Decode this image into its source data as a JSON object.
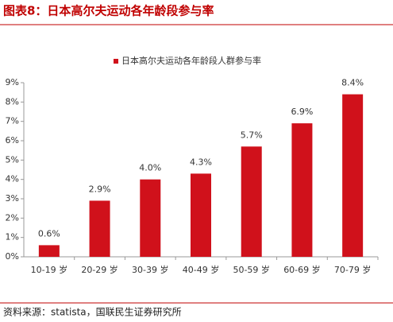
{
  "chart_data": {
    "type": "bar",
    "title": "图表8：日本高尔夫运动各年龄段参与率",
    "source": "资料来源：statista，国联民生证券研究所",
    "categories": [
      "10-19 岁",
      "20-29 岁",
      "30-39 岁",
      "40-49 岁",
      "50-59 岁",
      "60-69 岁",
      "70-79 岁"
    ],
    "series": [
      {
        "name": "日本高尔夫运动各年龄段人群参与率",
        "color": "#d0111b",
        "values": [
          0.6,
          2.9,
          4.0,
          4.3,
          5.7,
          6.9,
          8.4
        ],
        "value_labels": [
          "0.6%",
          "2.9%",
          "4.0%",
          "4.3%",
          "5.7%",
          "6.9%",
          "8.4%"
        ]
      }
    ],
    "ylim": [
      0,
      9
    ],
    "yticks": [
      {
        "value": 0,
        "label": "0%"
      },
      {
        "value": 1,
        "label": "1%"
      },
      {
        "value": 2,
        "label": "2%"
      },
      {
        "value": 3,
        "label": "3%"
      },
      {
        "value": 4,
        "label": "4%"
      },
      {
        "value": 5,
        "label": "5%"
      },
      {
        "value": 6,
        "label": "6%"
      },
      {
        "value": 7,
        "label": "7%"
      },
      {
        "value": 8,
        "label": "8%"
      },
      {
        "value": 9,
        "label": "9%"
      }
    ],
    "grid": false,
    "legend": "top"
  }
}
